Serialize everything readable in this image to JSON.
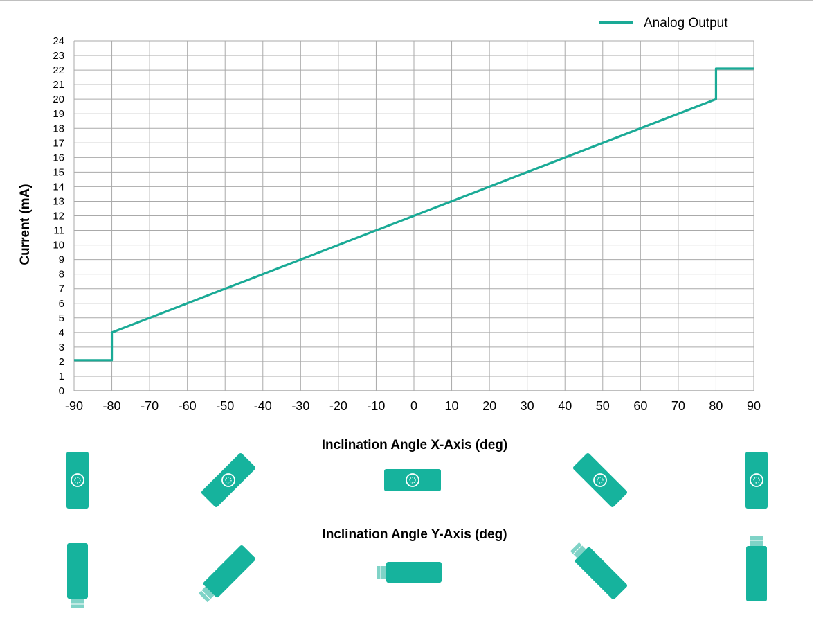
{
  "chart_data": {
    "type": "line",
    "legend": {
      "entries": [
        "Analog Output"
      ],
      "placement": "top-right"
    },
    "xlabel": "Inclination Angle X-Axis (deg)",
    "xlabel2": "Inclination Angle Y-Axis (deg)",
    "ylabel": "Current (mA)",
    "xlim": [
      -90,
      90
    ],
    "ylim": [
      0,
      24
    ],
    "grid": true,
    "x_ticks": [
      -90,
      -80,
      -70,
      -60,
      -50,
      -40,
      -30,
      -20,
      -10,
      0,
      10,
      20,
      30,
      40,
      50,
      60,
      70,
      80,
      90
    ],
    "y_ticks": [
      0,
      1,
      2,
      3,
      4,
      5,
      6,
      7,
      8,
      9,
      10,
      11,
      12,
      13,
      14,
      15,
      16,
      17,
      18,
      19,
      20,
      21,
      22,
      23,
      24
    ],
    "series": [
      {
        "name": "Analog Output",
        "color": "#1aaa96",
        "x": [
          -90,
          -80,
          -80,
          80,
          80,
          90
        ],
        "y": [
          2.1,
          2.1,
          4,
          20,
          22.1,
          22.1
        ]
      }
    ],
    "orientation_icons": {
      "x_axis": [
        {
          "angle_deg": -90,
          "icon": "sensor-top-view-icon"
        },
        {
          "angle_deg": -45,
          "icon": "sensor-top-view-icon"
        },
        {
          "angle_deg": 0,
          "icon": "sensor-top-view-icon"
        },
        {
          "angle_deg": 45,
          "icon": "sensor-top-view-icon"
        },
        {
          "angle_deg": 90,
          "icon": "sensor-top-view-icon"
        }
      ],
      "y_axis": [
        {
          "angle_deg": -90,
          "icon": "sensor-side-view-icon"
        },
        {
          "angle_deg": -45,
          "icon": "sensor-side-view-icon"
        },
        {
          "angle_deg": 0,
          "icon": "sensor-side-view-icon"
        },
        {
          "angle_deg": 45,
          "icon": "sensor-side-view-icon"
        },
        {
          "angle_deg": 90,
          "icon": "sensor-side-view-icon"
        }
      ]
    },
    "colors": {
      "line": "#1aaa96",
      "icon": "#16b39d",
      "grid": "#aaaaaa"
    }
  }
}
